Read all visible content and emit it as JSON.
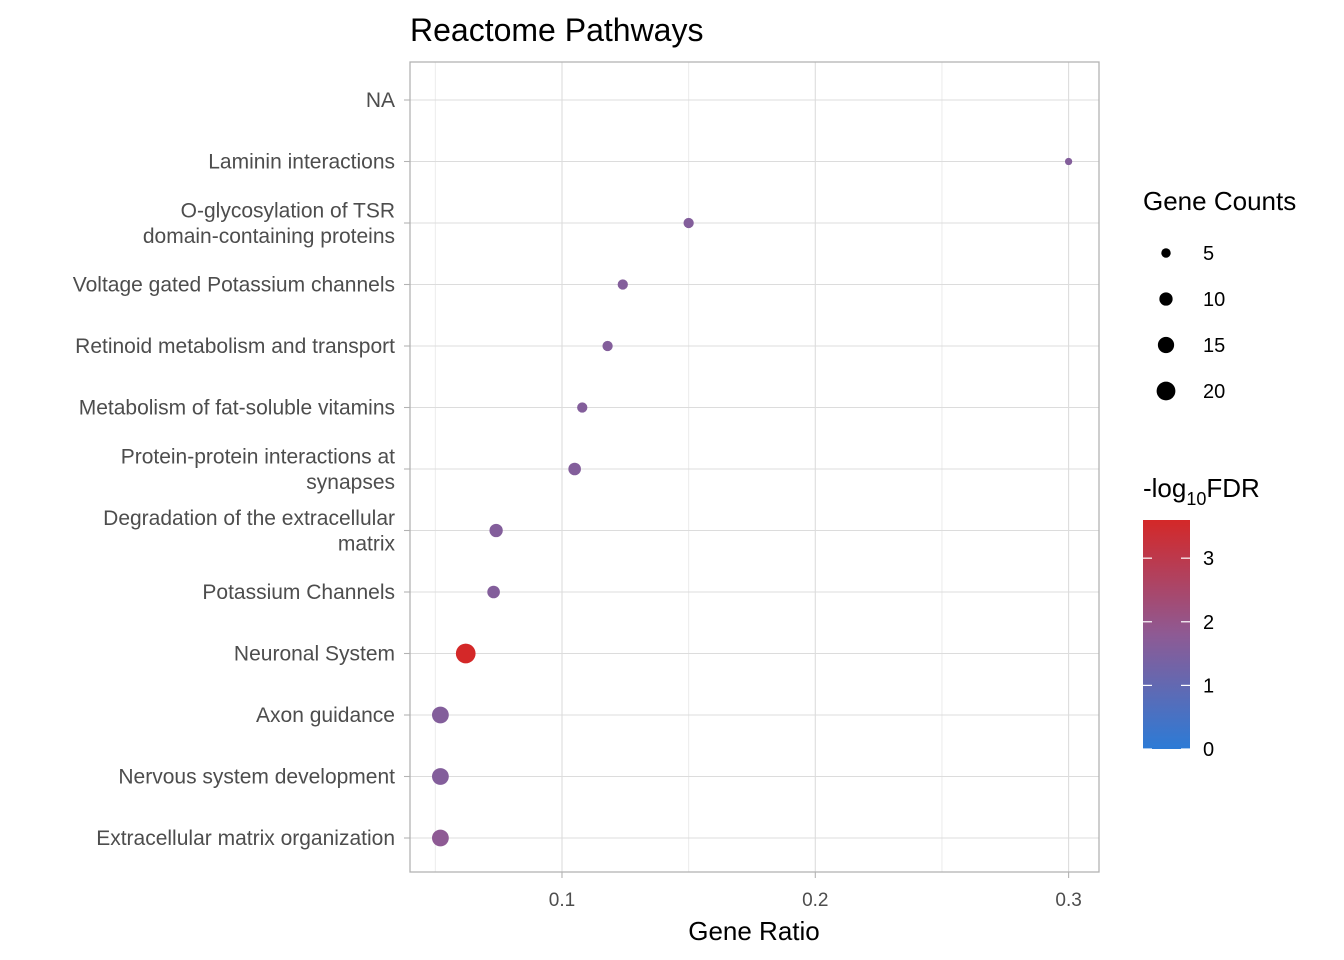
{
  "chart_data": {
    "type": "scatter",
    "title": "Reactome Pathways",
    "xlabel": "Gene Ratio",
    "ylabel": "",
    "xlim": [
      0.04,
      0.312
    ],
    "x_ticks": [
      "0.1",
      "0.2",
      "0.3"
    ],
    "x_tick_values": [
      0.1,
      0.2,
      0.3
    ],
    "grid": true,
    "legend_position": "right",
    "categories": [
      "NA",
      "Laminin interactions",
      "O-glycosylation of TSR domain-containing proteins",
      "Voltage gated Potassium channels",
      "Retinoid metabolism and transport",
      "Metabolism of fat-soluble vitamins",
      "Protein-protein interactions at synapses",
      "Degradation of the extracellular matrix",
      "Potassium Channels",
      "Neuronal System",
      "Axon guidance",
      "Nervous system development",
      "Extracellular matrix organization"
    ],
    "category_lines": [
      [
        "NA"
      ],
      [
        "Laminin interactions"
      ],
      [
        "O-glycosylation of TSR",
        "domain-containing proteins"
      ],
      [
        "Voltage gated Potassium channels"
      ],
      [
        "Retinoid metabolism and transport"
      ],
      [
        "Metabolism of fat-soluble vitamins"
      ],
      [
        "Protein-protein interactions at",
        "synapses"
      ],
      [
        "Degradation of the extracellular",
        "matrix"
      ],
      [
        "Potassium Channels"
      ],
      [
        "Neuronal System"
      ],
      [
        "Axon guidance"
      ],
      [
        "Nervous system development"
      ],
      [
        "Extracellular matrix organization"
      ]
    ],
    "points": [
      {
        "pathway": "Laminin interactions",
        "gene_ratio": 0.3,
        "gene_count": 3,
        "neg_log10_fdr": 1.6
      },
      {
        "pathway": "O-glycosylation of TSR domain-containing proteins",
        "gene_ratio": 0.15,
        "gene_count": 6,
        "neg_log10_fdr": 1.6
      },
      {
        "pathway": "Voltage gated Potassium channels",
        "gene_ratio": 0.124,
        "gene_count": 6,
        "neg_log10_fdr": 1.6
      },
      {
        "pathway": "Retinoid metabolism and transport",
        "gene_ratio": 0.118,
        "gene_count": 6,
        "neg_log10_fdr": 1.6
      },
      {
        "pathway": "Metabolism of fat-soluble vitamins",
        "gene_ratio": 0.108,
        "gene_count": 6,
        "neg_log10_fdr": 1.6
      },
      {
        "pathway": "Protein-protein interactions at synapses",
        "gene_ratio": 0.105,
        "gene_count": 9,
        "neg_log10_fdr": 1.6
      },
      {
        "pathway": "Degradation of the extracellular matrix",
        "gene_ratio": 0.074,
        "gene_count": 10,
        "neg_log10_fdr": 1.6
      },
      {
        "pathway": "Potassium Channels",
        "gene_ratio": 0.073,
        "gene_count": 9,
        "neg_log10_fdr": 1.6
      },
      {
        "pathway": "Neuronal System",
        "gene_ratio": 0.062,
        "gene_count": 22,
        "neg_log10_fdr": 3.6
      },
      {
        "pathway": "Axon guidance",
        "gene_ratio": 0.052,
        "gene_count": 16,
        "neg_log10_fdr": 1.6
      },
      {
        "pathway": "Nervous system development",
        "gene_ratio": 0.052,
        "gene_count": 16,
        "neg_log10_fdr": 1.6
      },
      {
        "pathway": "Extracellular matrix organization",
        "gene_ratio": 0.052,
        "gene_count": 16,
        "neg_log10_fdr": 1.8
      }
    ],
    "size_legend": {
      "title": "Gene Counts",
      "values": [
        5,
        10,
        15,
        20
      ],
      "labels": [
        "5",
        "10",
        "15",
        "20"
      ]
    },
    "color_legend": {
      "title_main": "-log",
      "title_sub": "10",
      "title_tail": "FDR",
      "range": [
        0,
        3.6
      ],
      "ticks": [
        0,
        1,
        2,
        3
      ],
      "labels": [
        "0",
        "1",
        "2",
        "3"
      ],
      "low_color": "#2C7BD6",
      "mid_color": "#8E5A94",
      "high_color": "#D42828"
    }
  }
}
